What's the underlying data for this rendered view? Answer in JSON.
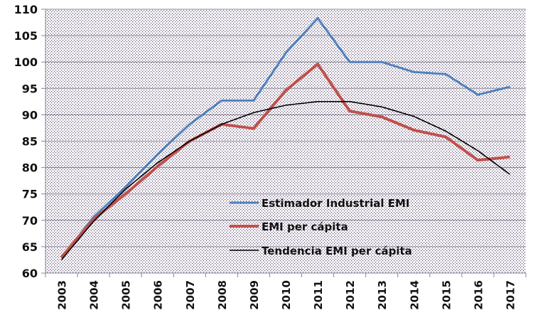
{
  "chart_data": {
    "type": "line",
    "title": "",
    "xlabel": "",
    "ylabel": "",
    "ylim": [
      60,
      110
    ],
    "yticks": [
      "60",
      "65",
      "70",
      "75",
      "80",
      "85",
      "90",
      "95",
      "100",
      "105",
      "110"
    ],
    "grid": true,
    "legend": "center",
    "categories": [
      "2003",
      "2004",
      "2005",
      "2006",
      "2007",
      "2008",
      "2009",
      "2010",
      "2011",
      "2012",
      "2013",
      "2014",
      "2015",
      "2016",
      "2017"
    ],
    "series": [
      {
        "name": "Estimador Industrial EMI",
        "color": "#4F81BD",
        "values": [
          62.9,
          70.6,
          76.3,
          82.5,
          88.2,
          92.7,
          92.7,
          101.7,
          108.3,
          100.0,
          100.0,
          98.1,
          97.7,
          93.8,
          95.3
        ]
      },
      {
        "name": "EMI per cápita",
        "color": "#C0504D",
        "values": [
          63.0,
          70.2,
          75.0,
          80.2,
          85.0,
          88.2,
          87.4,
          94.6,
          99.6,
          90.7,
          89.6,
          87.1,
          85.8,
          81.4,
          82.0
        ]
      },
      {
        "name": "Tendencia EMI per cápita",
        "color": "#000000",
        "values": [
          62.5,
          69.8,
          75.9,
          80.9,
          85.0,
          88.2,
          90.4,
          91.8,
          92.5,
          92.5,
          91.5,
          89.7,
          86.9,
          83.2,
          78.7
        ]
      }
    ]
  }
}
